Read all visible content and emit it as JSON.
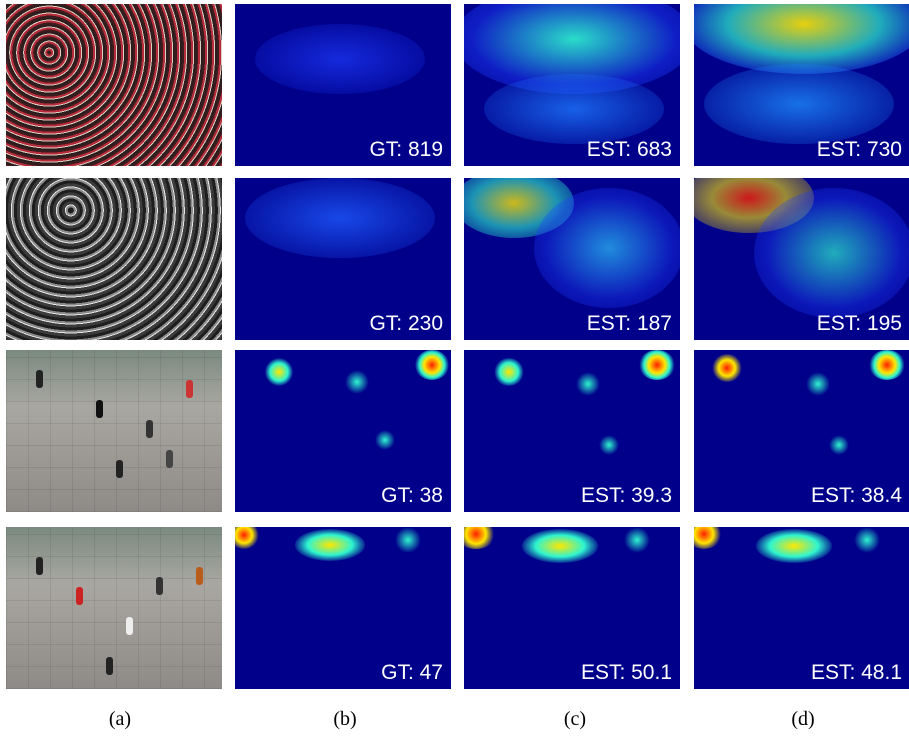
{
  "rows": [
    {
      "photo": "dense-crowd-red",
      "gt": "GT: 819",
      "est_c": "EST: 683",
      "est_d": "EST: 730"
    },
    {
      "photo": "crowd-black-and-white",
      "gt": "GT: 230",
      "est_c": "EST: 187",
      "est_d": "EST: 195"
    },
    {
      "photo": "pedestrian-plaza",
      "gt": "GT: 38",
      "est_c": "EST: 39.3",
      "est_d": "EST: 38.4"
    },
    {
      "photo": "pedestrian-plaza-steps",
      "gt": "GT: 47",
      "est_c": "EST: 50.1",
      "est_d": "EST: 48.1"
    }
  ],
  "captions": [
    "(a)",
    "(b)",
    "(c)",
    "(d)"
  ],
  "colors": {
    "density_background": "#00008b",
    "low": "#1e3cff",
    "mid": "#2ef5d0",
    "high": "#ffe600",
    "peak": "#ff1e00"
  }
}
